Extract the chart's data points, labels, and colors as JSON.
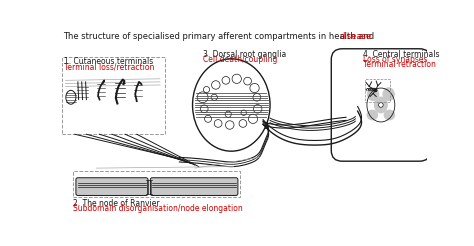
{
  "title_black": "The structure of specialised primary afferent compartments in health and ",
  "title_red": "disease",
  "label1_black": "1. Cutaneous terminals",
  "label1_red": "Terminal loss/retraction",
  "label2_black": "2. The node of Ranvier",
  "label2_red": "Subdomain disorganisation/node elongation",
  "label3_black": "3. Dorsal root ganglia",
  "label3_red": "Cell death/coupling",
  "label4_black": "4. Central terminals",
  "label4_red1": "Loss of synapses",
  "label4_red2": "Terminal retraction",
  "bg_color": "#ffffff",
  "black": "#1a1a1a",
  "red": "#cc0000",
  "gray_fill": "#c8c8c8",
  "gray_light": "#e0e0e0",
  "dark_gray": "#555555"
}
